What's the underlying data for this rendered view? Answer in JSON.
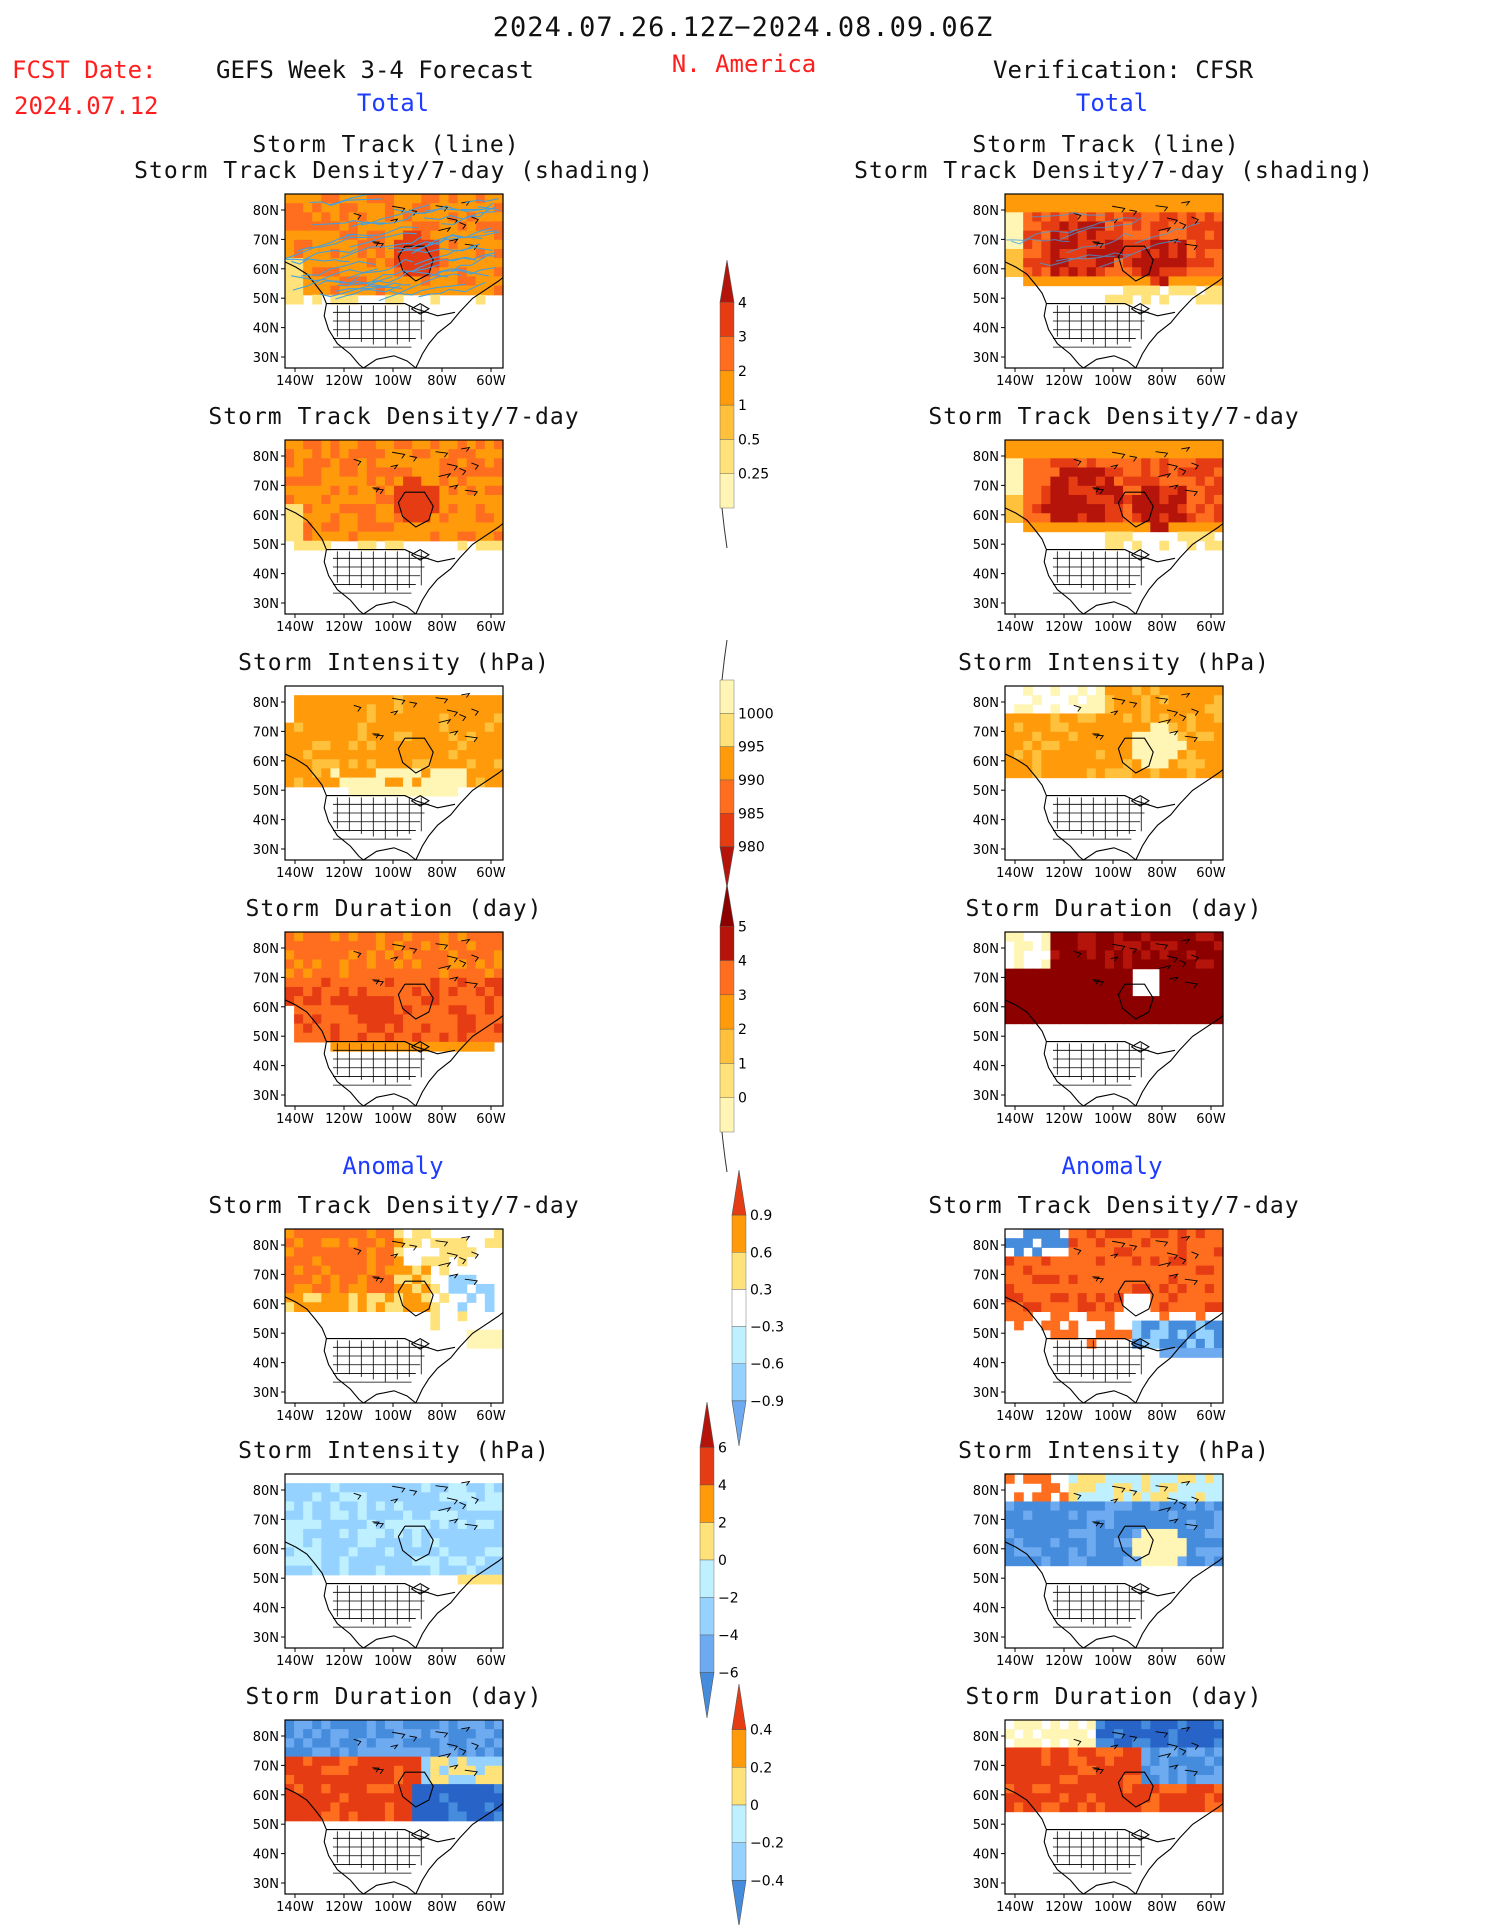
{
  "header": {
    "period": "2024.07.26.12Z−2024.08.09.06Z",
    "region": "N. America",
    "fcst_label": "FCST Date:",
    "fcst_date": "2024.07.12",
    "left_title": "GEFS Week 3-4 Forecast",
    "right_title": "Verification: CFSR",
    "total_label": "Total",
    "anomaly_label": "Anomaly"
  },
  "panel_titles": {
    "track_line": "Storm Track (line)",
    "track_shading": "Storm Track Density/7-day (shading)",
    "density": "Storm Track Density/7-day",
    "intensity": "Storm Intensity (hPa)",
    "duration": "Storm Duration (day)"
  },
  "axes": {
    "lat_labels": [
      "80N",
      "70N",
      "60N",
      "50N",
      "40N",
      "30N"
    ],
    "lon_labels": [
      "140W",
      "120W",
      "100W",
      "80W",
      "60W"
    ]
  },
  "colorbars": {
    "density_total": [
      "4",
      "3",
      "2",
      "1",
      "0.5",
      "0.25"
    ],
    "intensity_total": [
      "1000",
      "995",
      "990",
      "985",
      "980"
    ],
    "duration_total": [
      "5",
      "4",
      "3",
      "2",
      "1",
      "0"
    ],
    "density_anom": [
      "0.9",
      "0.6",
      "0.3",
      "−0.3",
      "−0.6",
      "−0.9"
    ],
    "intensity_anom": [
      "6",
      "4",
      "2",
      "0",
      "−2",
      "−4",
      "−6"
    ],
    "duration_anom": [
      "0.4",
      "0.2",
      "0",
      "−0.2",
      "−0.4"
    ]
  },
  "colors": {
    "warm": [
      "#fff5b4",
      "#ffe27a",
      "#ffc13c",
      "#ff9b0a",
      "#ff6e1e",
      "#e63c14",
      "#b4140a",
      "#8c0000"
    ],
    "cool": [
      "#bef0ff",
      "#96d2ff",
      "#6eaaf0",
      "#468cdc",
      "#2864c8"
    ],
    "track_line": "#3ca0e6",
    "title_red": "#ff1e1e",
    "title_blue": "#1e3cff"
  }
}
